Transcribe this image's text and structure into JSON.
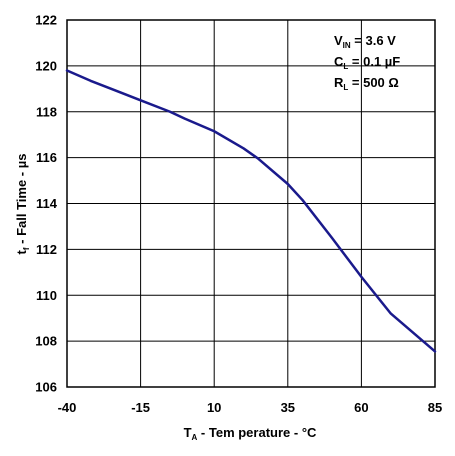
{
  "chart_data": {
    "type": "line",
    "title": "",
    "xlabel": {
      "main": "T",
      "sub": "A",
      "rest": " - Tem perature - °C"
    },
    "ylabel": {
      "main": "t",
      "sub": "f",
      "rest": " - Fall Time - µs"
    },
    "xlim": [
      -40,
      85
    ],
    "ylim": [
      106,
      122
    ],
    "x_ticks": [
      -40,
      -15,
      10,
      35,
      60,
      85
    ],
    "y_ticks": [
      106,
      108,
      110,
      112,
      114,
      116,
      118,
      120,
      122
    ],
    "x_tick_labels": [
      "-40",
      "-15",
      "10",
      "35",
      "60",
      "85"
    ],
    "y_tick_labels": [
      "106",
      "108",
      "110",
      "112",
      "114",
      "116",
      "118",
      "120",
      "122"
    ],
    "grid": true,
    "line_color": "#1a1a8c",
    "annotations": [
      {
        "main": "V",
        "sub": "IN",
        "rest": " = 3.6 V"
      },
      {
        "main": "C",
        "sub": "L",
        "rest": " = 0.1 µF"
      },
      {
        "main": "R",
        "sub": "L",
        "rest": " = 500 Ω"
      }
    ],
    "series": [
      {
        "x": [
          -40,
          -32,
          -25,
          -15,
          -5,
          0,
          10,
          20,
          25,
          35,
          40,
          50,
          60,
          70,
          85
        ],
        "y": [
          119.8,
          119.35,
          119.0,
          118.5,
          118.0,
          117.7,
          117.15,
          116.4,
          115.95,
          114.85,
          114.15,
          112.5,
          110.8,
          109.2,
          107.55
        ]
      }
    ]
  }
}
